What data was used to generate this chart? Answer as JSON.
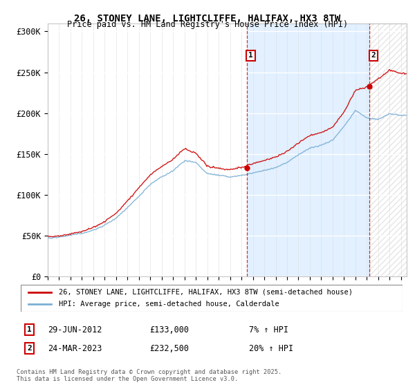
{
  "title": "26, STONEY LANE, LIGHTCLIFFE, HALIFAX, HX3 8TW",
  "subtitle": "Price paid vs. HM Land Registry's House Price Index (HPI)",
  "ylabel_ticks": [
    "£0",
    "£50K",
    "£100K",
    "£150K",
    "£200K",
    "£250K",
    "£300K"
  ],
  "ytick_vals": [
    0,
    50000,
    100000,
    150000,
    200000,
    250000,
    300000
  ],
  "ylim": [
    0,
    310000
  ],
  "xlim_start": 1995.0,
  "xlim_end": 2026.5,
  "red_color": "#cc0000",
  "blue_color": "#7bafd4",
  "bg_color": "#ffffff",
  "shaded_bg": "#ddeeff",
  "marker1_date": 2012.5,
  "marker1_price": 133000,
  "marker2_date": 2023.22,
  "marker2_price": 232500,
  "legend_line1": "26, STONEY LANE, LIGHTCLIFFE, HALIFAX, HX3 8TW (semi-detached house)",
  "legend_line2": "HPI: Average price, semi-detached house, Calderdale",
  "annot1_date": "29-JUN-2012",
  "annot1_price": "£133,000",
  "annot1_hpi": "7% ↑ HPI",
  "annot2_date": "24-MAR-2023",
  "annot2_price": "£232,500",
  "annot2_hpi": "20% ↑ HPI",
  "footer": "Contains HM Land Registry data © Crown copyright and database right 2025.\nThis data is licensed under the Open Government Licence v3.0.",
  "hpi_knots_x": [
    1995,
    1996,
    1997,
    1998,
    1999,
    2000,
    2001,
    2002,
    2003,
    2004,
    2005,
    2006,
    2007,
    2008,
    2009,
    2010,
    2011,
    2012,
    2013,
    2014,
    2015,
    2016,
    2017,
    2018,
    2019,
    2020,
    2021,
    2022,
    2023,
    2024,
    2025,
    2026
  ],
  "hpi_knots_y": [
    47000,
    48000,
    50000,
    53000,
    57000,
    63000,
    72000,
    85000,
    98000,
    113000,
    122000,
    130000,
    142000,
    140000,
    126000,
    124000,
    122000,
    124000,
    127000,
    130000,
    134000,
    140000,
    150000,
    158000,
    162000,
    168000,
    185000,
    204000,
    195000,
    193000,
    200000,
    198000
  ],
  "red_knots_x": [
    1995,
    1996,
    1997,
    1998,
    1999,
    2000,
    2001,
    2002,
    2003,
    2004,
    2005,
    2006,
    2007,
    2008,
    2009,
    2010,
    2011,
    2012,
    2013,
    2014,
    2015,
    2016,
    2017,
    2018,
    2019,
    2020,
    2021,
    2022,
    2023,
    2024,
    2025,
    2026
  ],
  "red_knots_y": [
    49000,
    50000,
    52000,
    55000,
    60000,
    67000,
    77000,
    92000,
    108000,
    124000,
    134000,
    143000,
    156000,
    150000,
    134000,
    132000,
    130000,
    133000,
    138000,
    142000,
    146000,
    153000,
    163000,
    172000,
    176000,
    183000,
    202000,
    228000,
    232500,
    242000,
    253000,
    248000
  ]
}
